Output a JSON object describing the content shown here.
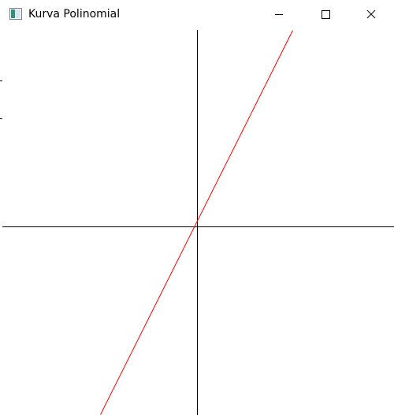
{
  "window": {
    "title": "Kurva Polinomial",
    "controls": [
      "minimize-icon",
      "maximize-icon",
      "close-icon"
    ]
  },
  "colors": {
    "axis": "#000000",
    "curve": "#ff0000",
    "background": "#ffffff"
  },
  "chart_data": {
    "type": "line",
    "title": "",
    "xlabel": "",
    "ylabel": "",
    "grid": false,
    "xlim": [
      -250,
      250
    ],
    "ylim": [
      -238,
      250
    ],
    "series": [
      {
        "name": "",
        "x": [
          -123,
          121
        ],
        "y": [
          -238,
          249
        ]
      }
    ]
  }
}
